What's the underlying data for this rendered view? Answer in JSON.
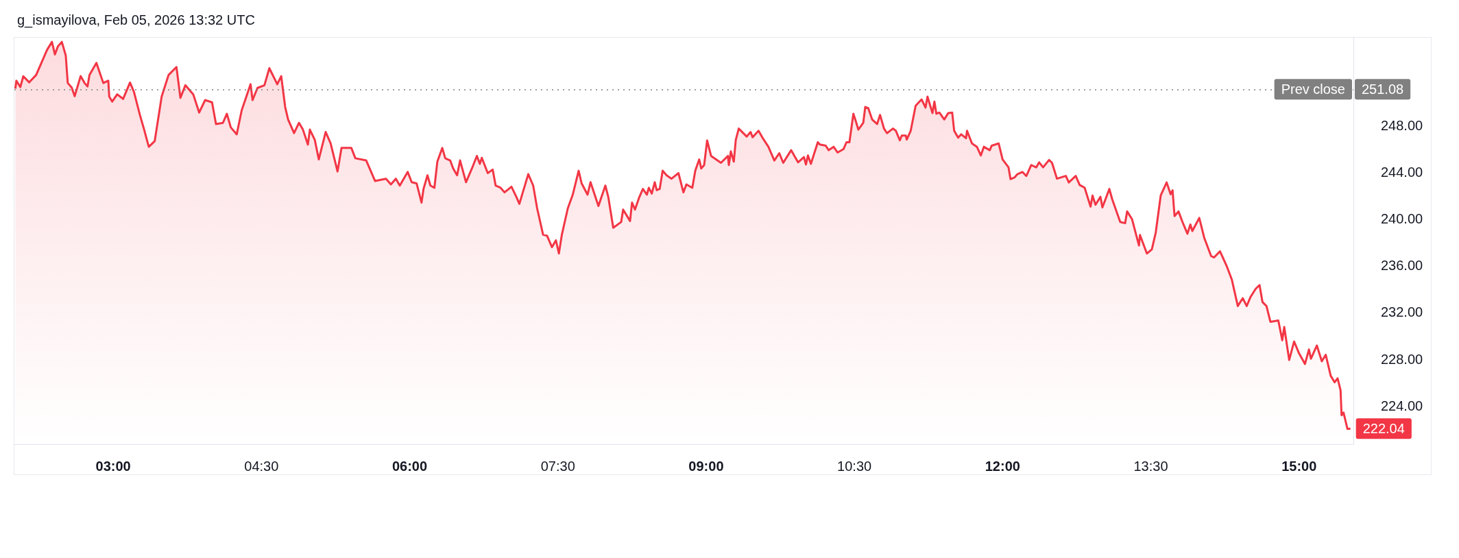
{
  "chart_data": {
    "type": "area",
    "title": "g_ismayilova, Feb 05, 2026 13:32 UTC",
    "color": "#f23645",
    "x": [
      2.01,
      2.02,
      2.06,
      2.09,
      2.15,
      2.22,
      2.27,
      2.33,
      2.38,
      2.41,
      2.44,
      2.48,
      2.52,
      2.54,
      2.58,
      2.61,
      2.67,
      2.71,
      2.74,
      2.76,
      2.83,
      2.86,
      2.9,
      2.95,
      2.96,
      2.99,
      3.04,
      3.1,
      3.17,
      3.21,
      3.27,
      3.31,
      3.36,
      3.42,
      3.49,
      3.56,
      3.64,
      3.68,
      3.73,
      3.81,
      3.87,
      3.93,
      4.0,
      4.04,
      4.11,
      4.15,
      4.19,
      4.25,
      4.3,
      4.39,
      4.41,
      4.46,
      4.53,
      4.58,
      4.66,
      4.7,
      4.74,
      4.77,
      4.83,
      4.88,
      4.92,
      4.97,
      4.99,
      5.04,
      5.08,
      5.15,
      5.2,
      5.27,
      5.31,
      5.41,
      5.45,
      5.56,
      5.65,
      5.76,
      5.81,
      5.86,
      5.9,
      5.98,
      6.02,
      6.07,
      6.12,
      6.14,
      6.18,
      6.21,
      6.25,
      6.28,
      6.33,
      6.36,
      6.41,
      6.44,
      6.48,
      6.51,
      6.57,
      6.63,
      6.68,
      6.71,
      6.73,
      6.79,
      6.84,
      6.87,
      6.92,
      6.96,
      7.03,
      7.08,
      7.11,
      7.2,
      7.25,
      7.29,
      7.35,
      7.39,
      7.44,
      7.48,
      7.51,
      7.54,
      7.6,
      7.65,
      7.71,
      7.74,
      7.8,
      7.83,
      7.91,
      7.98,
      8.01,
      8.06,
      8.14,
      8.16,
      8.23,
      8.25,
      8.28,
      8.32,
      8.36,
      8.4,
      8.42,
      8.45,
      8.48,
      8.5,
      8.53,
      8.56,
      8.6,
      8.65,
      8.72,
      8.77,
      8.8,
      8.86,
      8.89,
      8.93,
      8.95,
      8.98,
      9.01,
      9.05,
      9.15,
      9.22,
      9.23,
      9.25,
      9.28,
      9.3,
      9.33,
      9.41,
      9.45,
      9.47,
      9.53,
      9.57,
      9.63,
      9.69,
      9.74,
      9.78,
      9.86,
      9.93,
      9.99,
      10.01,
      10.03,
      10.06,
      10.13,
      10.15,
      10.21,
      10.24,
      10.29,
      10.33,
      10.39,
      10.42,
      10.45,
      10.49,
      10.52,
      10.54,
      10.59,
      10.61,
      10.64,
      10.68,
      10.73,
      10.76,
      10.8,
      10.83,
      10.89,
      10.92,
      10.96,
      10.98,
      11.02,
      11.03,
      11.07,
      11.12,
      11.18,
      11.22,
      11.24,
      11.29,
      11.31,
      11.33,
      11.36,
      11.41,
      11.45,
      11.49,
      11.51,
      11.55,
      11.58,
      11.63,
      11.64,
      11.69,
      11.74,
      11.78,
      11.81,
      11.87,
      11.89,
      11.96,
      12.0,
      12.06,
      12.08,
      12.12,
      12.15,
      12.2,
      12.24,
      12.29,
      12.34,
      12.37,
      12.41,
      12.47,
      12.5,
      12.55,
      12.64,
      12.67,
      12.74,
      12.78,
      12.83,
      12.89,
      12.91,
      12.94,
      12.99,
      13.01,
      13.08,
      13.11,
      13.19,
      13.24,
      13.26,
      13.31,
      13.38,
      13.39,
      13.46,
      13.51,
      13.55,
      13.6,
      13.66,
      13.7,
      13.72,
      13.74,
      13.78,
      13.82,
      13.87,
      13.9,
      13.92,
      13.99,
      14.04,
      14.11,
      14.14,
      14.2,
      14.27,
      14.32,
      14.38,
      14.43,
      14.47,
      14.51,
      14.56,
      14.6,
      14.63,
      14.67,
      14.71,
      14.79,
      14.83,
      14.85,
      14.9,
      14.95,
      15.0,
      15.06,
      15.1,
      15.12,
      15.18,
      15.23,
      15.27,
      15.32,
      15.36,
      15.39,
      15.42,
      15.43,
      15.45,
      15.49,
      15.52
    ],
    "values": [
      251.14,
      251.82,
      251.27,
      252.2,
      251.68,
      252.31,
      253.28,
      254.45,
      255.14,
      254.07,
      254.75,
      255.14,
      253.97,
      251.62,
      251.23,
      250.49,
      252.21,
      251.62,
      251.33,
      252.31,
      253.34,
      252.6,
      251.62,
      251.82,
      250.45,
      250.03,
      250.65,
      250.26,
      251.66,
      250.85,
      248.89,
      247.72,
      246.16,
      246.65,
      250.45,
      252.31,
      252.99,
      250.35,
      251.43,
      250.65,
      249.09,
      250.16,
      249.97,
      248.11,
      248.21,
      248.99,
      247.82,
      247.23,
      249.28,
      251.52,
      250.16,
      251.2,
      251.43,
      252.89,
      251.52,
      252.21,
      249.57,
      248.5,
      247.33,
      248.21,
      247.63,
      246.35,
      247.63,
      246.75,
      245.08,
      247.43,
      246.45,
      244.05,
      246.06,
      246.06,
      245.18,
      244.99,
      243.23,
      243.43,
      242.94,
      243.43,
      242.84,
      244.01,
      243.13,
      243.03,
      241.38,
      242.55,
      243.72,
      242.84,
      242.65,
      244.89,
      246.06,
      245.18,
      244.99,
      244.31,
      243.72,
      244.99,
      243.13,
      244.31,
      245.38,
      244.7,
      245.22,
      243.91,
      244.21,
      242.84,
      242.65,
      242.26,
      242.74,
      241.86,
      241.28,
      243.82,
      242.84,
      240.89,
      238.64,
      238.55,
      237.57,
      238.16,
      237.03,
      238.64,
      240.89,
      242.06,
      244.11,
      243.03,
      242.06,
      243.13,
      241.09,
      242.84,
      241.86,
      239.23,
      239.72,
      240.79,
      239.81,
      241.38,
      240.79,
      241.77,
      242.55,
      242.06,
      242.65,
      242.16,
      243.13,
      242.45,
      242.55,
      244.11,
      243.72,
      243.43,
      243.91,
      242.26,
      242.94,
      242.65,
      244.11,
      245.08,
      244.31,
      244.6,
      246.7,
      245.38,
      244.79,
      245.38,
      244.6,
      245.77,
      244.89,
      246.75,
      247.72,
      247.04,
      247.43,
      246.98,
      247.53,
      246.94,
      246.16,
      244.99,
      245.61,
      244.79,
      245.87,
      244.83,
      245.28,
      244.64,
      245.42,
      244.7,
      246.55,
      246.36,
      246.26,
      245.87,
      246.16,
      245.67,
      245.96,
      246.55,
      246.55,
      248.99,
      248.21,
      247.63,
      248.21,
      249.57,
      249.48,
      248.5,
      248.11,
      248.89,
      247.72,
      247.33,
      247.72,
      247.53,
      246.71,
      247.13,
      247.13,
      246.78,
      247.53,
      249.68,
      250.22,
      249.52,
      250.45,
      249.05,
      250.03,
      248.99,
      249.09,
      248.5,
      249.05,
      249.09,
      247.53,
      246.94,
      247.23,
      246.9,
      247.53,
      246.45,
      246.16,
      245.42,
      246.16,
      245.87,
      246.26,
      246.45,
      245.08,
      244.4,
      243.39,
      243.53,
      243.82,
      244.01,
      243.66,
      244.6,
      244.4,
      244.83,
      244.4,
      245.03,
      244.79,
      243.43,
      243.67,
      243.11,
      243.67,
      242.89,
      242.66,
      241.04,
      241.99,
      241.2,
      241.88,
      240.97,
      242.55,
      241.65,
      239.73,
      239.62,
      240.63,
      239.96,
      237.71,
      238.61,
      237.03,
      237.37,
      238.83,
      241.99,
      243.11,
      242.1,
      242.44,
      240.23,
      240.63,
      239.73,
      238.72,
      239.51,
      238.95,
      240.07,
      238.38,
      236.81,
      236.69,
      237.21,
      235.9,
      234.78,
      232.53,
      233.2,
      232.53,
      233.32,
      233.99,
      234.33,
      232.87,
      232.53,
      231.18,
      231.29,
      229.6,
      230.73,
      227.91,
      229.49,
      228.47,
      227.57,
      228.81,
      228.02,
      229.15,
      227.8,
      228.36,
      226.56,
      226,
      226.34,
      225.32,
      223.18,
      223.41,
      222.0,
      222.04
    ],
    "xlim": [
      2.0,
      15.55
    ],
    "ylim": [
      220.7,
      255.5
    ],
    "xticks": [
      {
        "value": 3,
        "label": "03:00"
      },
      {
        "value": 4.5,
        "label": "04:30"
      },
      {
        "value": 6,
        "label": "06:00"
      },
      {
        "value": 7.5,
        "label": "07:30"
      },
      {
        "value": 9,
        "label": "09:00"
      },
      {
        "value": 10.5,
        "label": "10:30"
      },
      {
        "value": 12,
        "label": "12:00"
      },
      {
        "value": 13.5,
        "label": "13:30"
      },
      {
        "value": 15,
        "label": "15:00"
      }
    ],
    "yticks": [
      {
        "value": 224,
        "label": "224.00"
      },
      {
        "value": 228,
        "label": "228.00"
      },
      {
        "value": 232,
        "label": "232.00"
      },
      {
        "value": 236,
        "label": "236.00"
      },
      {
        "value": 240,
        "label": "240.00"
      },
      {
        "value": 244,
        "label": "244.00"
      },
      {
        "value": 248,
        "label": "248.00"
      }
    ],
    "ref_lines": [
      {
        "axis": "y",
        "value": 251.08,
        "label": "Prev close",
        "color": "#808080",
        "line_style": "dotted"
      }
    ],
    "annotations": [
      "251.08",
      {
        "text": "222.04",
        "x": 15.52,
        "y": 222.04
      }
    ]
  }
}
